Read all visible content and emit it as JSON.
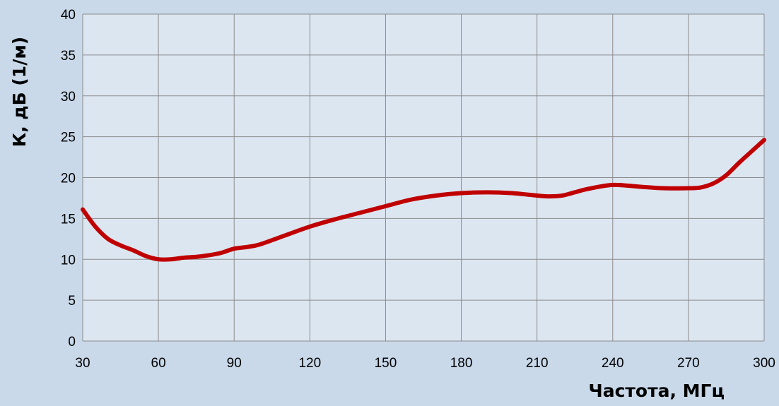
{
  "colors": {
    "page_background": "#c9d9ea",
    "plot_background": "#dce6f1",
    "grid": "#8c8c8c",
    "series": "#c00000"
  },
  "chart_data": {
    "type": "line",
    "title": "",
    "xlabel": "Частота, МГц",
    "ylabel": "К, дБ (1/м)",
    "xlim": [
      30,
      300
    ],
    "ylim": [
      0,
      40
    ],
    "x_ticks": [
      30,
      60,
      90,
      120,
      150,
      180,
      210,
      240,
      270,
      300
    ],
    "y_ticks": [
      0,
      5,
      10,
      15,
      20,
      25,
      30,
      35,
      40
    ],
    "grid": true,
    "legend": "none",
    "series": [
      {
        "color": "#c00000",
        "x": [
          30,
          35,
          40,
          45,
          50,
          55,
          60,
          65,
          70,
          75,
          80,
          85,
          90,
          95,
          100,
          110,
          120,
          130,
          140,
          150,
          160,
          170,
          180,
          190,
          200,
          210,
          215,
          220,
          225,
          230,
          240,
          250,
          260,
          270,
          275,
          280,
          285,
          290,
          295,
          300
        ],
        "y": [
          16.1,
          14.0,
          12.5,
          11.7,
          11.1,
          10.4,
          10.0,
          10.0,
          10.2,
          10.3,
          10.5,
          10.8,
          11.3,
          11.5,
          11.8,
          12.9,
          14.0,
          14.9,
          15.7,
          16.5,
          17.3,
          17.8,
          18.1,
          18.2,
          18.1,
          17.8,
          17.7,
          17.8,
          18.2,
          18.6,
          19.1,
          18.9,
          18.7,
          18.7,
          18.8,
          19.3,
          20.3,
          21.8,
          23.2,
          24.6
        ]
      }
    ]
  }
}
